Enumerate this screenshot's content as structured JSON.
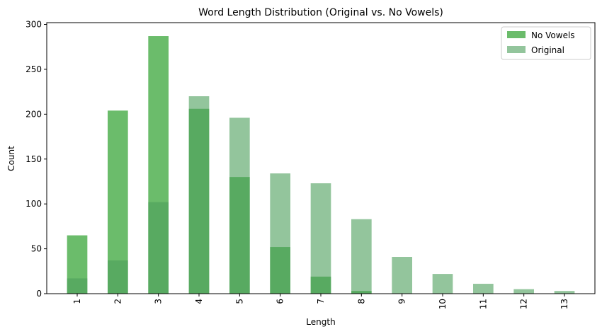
{
  "chart_data": {
    "type": "bar",
    "title": "Word Length Distribution (Original vs. No Vowels)",
    "xlabel": "Length",
    "ylabel": "Count",
    "ylim": [
      0,
      302
    ],
    "yticks": [
      0,
      50,
      100,
      150,
      200,
      250,
      300
    ],
    "categories": [
      "1",
      "2",
      "3",
      "4",
      "5",
      "6",
      "7",
      "8",
      "9",
      "10",
      "11",
      "12",
      "13"
    ],
    "series": [
      {
        "name": "No Vowels",
        "color": "#2ca02c",
        "alpha": 0.7,
        "values": [
          65,
          204,
          287,
          206,
          130,
          52,
          19,
          3,
          0,
          0,
          0,
          0,
          0
        ]
      },
      {
        "name": "Original",
        "color": "#4b9e5a",
        "alpha": 0.6,
        "values": [
          17,
          37,
          102,
          220,
          196,
          134,
          123,
          83,
          41,
          22,
          11,
          5,
          3
        ]
      }
    ],
    "legend": {
      "position": "top-right"
    },
    "grid": false
  }
}
